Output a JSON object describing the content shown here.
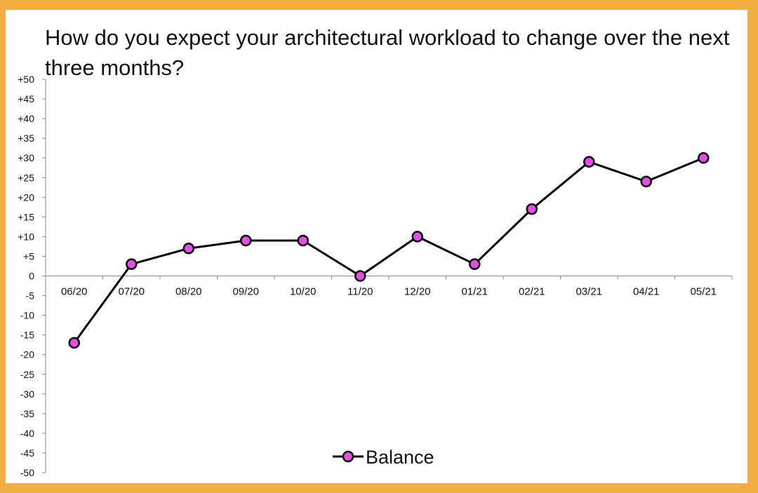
{
  "chart_data": {
    "type": "line",
    "title": "How do you expect your architectural workload to change over the next three months?",
    "categories": [
      "06/20",
      "07/20",
      "08/20",
      "09/20",
      "10/20",
      "11/20",
      "12/20",
      "01/21",
      "02/21",
      "03/21",
      "04/21",
      "05/21"
    ],
    "series": [
      {
        "name": "Balance",
        "values": [
          -17,
          3,
          7,
          9,
          9,
          0,
          10,
          3,
          17,
          29,
          24,
          30
        ]
      }
    ],
    "ylim": [
      -50,
      50
    ],
    "ytick_step": 5,
    "ytick_labels": [
      "+50",
      "+45",
      "+40",
      "+35",
      "+30",
      "+25",
      "+20",
      "+15",
      "+10",
      "+5",
      "0",
      "-5",
      "-10",
      "-15",
      "-20",
      "-25",
      "-30",
      "-35",
      "-40",
      "-45",
      "-50"
    ],
    "grid": false,
    "legend_position": "bottom-center",
    "colors": {
      "line": "#000000",
      "marker_fill": "#e64ce6",
      "marker_edge": "#000000",
      "frame": "#f2ae43"
    }
  }
}
